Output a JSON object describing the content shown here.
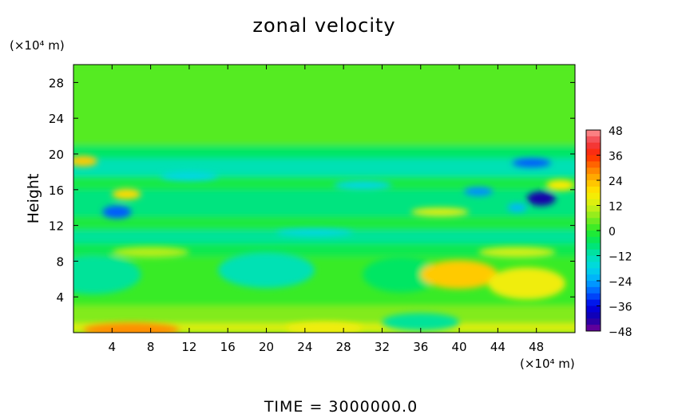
{
  "chart_data": {
    "type": "heatmap",
    "title": "zonal velocity",
    "ylabel": "Height",
    "y_unit_label": "(×10⁴ m)",
    "x_unit_label": "(×10⁴ m)",
    "footer": "TIME  =  3000000.0",
    "xlim": [
      0,
      52
    ],
    "ylim": [
      0,
      30
    ],
    "x_ticks": [
      "4",
      "8",
      "12",
      "16",
      "20",
      "24",
      "28",
      "32",
      "36",
      "40",
      "44",
      "48"
    ],
    "x_tick_values": [
      4,
      8,
      12,
      16,
      20,
      24,
      28,
      32,
      36,
      40,
      44,
      48
    ],
    "y_ticks": [
      "4",
      "8",
      "12",
      "16",
      "20",
      "24",
      "28"
    ],
    "y_tick_values": [
      4,
      8,
      12,
      16,
      20,
      24,
      28
    ],
    "colorbar": {
      "labels": [
        "48",
        "36",
        "24",
        "12",
        "0",
        "−12",
        "−24",
        "−36",
        "−48"
      ],
      "values": [
        48,
        36,
        24,
        12,
        0,
        -12,
        -24,
        -36,
        -48
      ],
      "min": -48,
      "max": 48
    },
    "field": {
      "background_value": 3,
      "bands": [
        {
          "y0": 0,
          "y1": 1,
          "value": 14
        },
        {
          "y0": 1,
          "y1": 3,
          "value": 6
        },
        {
          "y0": 3,
          "y1": 8.5,
          "value": 1
        },
        {
          "y0": 8.5,
          "y1": 10,
          "value": -4
        },
        {
          "y0": 10,
          "y1": 11.5,
          "value": -10
        },
        {
          "y0": 11.5,
          "y1": 13,
          "value": -2
        },
        {
          "y0": 13,
          "y1": 16,
          "value": -8
        },
        {
          "y0": 16,
          "y1": 17.5,
          "value": -3
        },
        {
          "y0": 17.5,
          "y1": 19.5,
          "value": -12
        },
        {
          "y0": 19.5,
          "y1": 21,
          "value": -6
        },
        {
          "y0": 21,
          "y1": 30,
          "value": 3
        }
      ],
      "blobs": [
        {
          "x": 6,
          "y": 0.3,
          "rx": 5,
          "ry": 0.8,
          "value": 28
        },
        {
          "x": 26,
          "y": 0.5,
          "rx": 4,
          "ry": 0.7,
          "value": 16
        },
        {
          "x": 2,
          "y": 6.5,
          "rx": 5,
          "ry": 2.2,
          "value": -10
        },
        {
          "x": 20,
          "y": 7,
          "rx": 5,
          "ry": 2,
          "value": -12
        },
        {
          "x": 34,
          "y": 6.5,
          "rx": 4,
          "ry": 2,
          "value": -6
        },
        {
          "x": 40,
          "y": 6.5,
          "rx": 4,
          "ry": 1.6,
          "value": 22
        },
        {
          "x": 47,
          "y": 5.5,
          "rx": 4,
          "ry": 1.8,
          "value": 16
        },
        {
          "x": 36,
          "y": 1.2,
          "rx": 4,
          "ry": 1,
          "value": -10
        },
        {
          "x": 4.5,
          "y": 13.5,
          "rx": 1.5,
          "ry": 0.7,
          "value": -30
        },
        {
          "x": 5.5,
          "y": 15.5,
          "rx": 1.5,
          "ry": 0.6,
          "value": 20
        },
        {
          "x": 1,
          "y": 19.2,
          "rx": 1.5,
          "ry": 0.6,
          "value": 22
        },
        {
          "x": 48.5,
          "y": 15,
          "rx": 1.5,
          "ry": 0.8,
          "value": -42
        },
        {
          "x": 47.5,
          "y": 19,
          "rx": 2,
          "ry": 0.5,
          "value": -30
        },
        {
          "x": 42,
          "y": 15.8,
          "rx": 1.5,
          "ry": 0.5,
          "value": -26
        },
        {
          "x": 46,
          "y": 14,
          "rx": 1,
          "ry": 0.5,
          "value": -22
        },
        {
          "x": 50.5,
          "y": 16.5,
          "rx": 1.5,
          "ry": 0.6,
          "value": 18
        },
        {
          "x": 30,
          "y": 16.5,
          "rx": 3,
          "ry": 0.5,
          "value": -18
        },
        {
          "x": 12,
          "y": 17.5,
          "rx": 3,
          "ry": 0.5,
          "value": -18
        },
        {
          "x": 38,
          "y": 13.5,
          "rx": 3,
          "ry": 0.5,
          "value": 14
        },
        {
          "x": 25,
          "y": 11.2,
          "rx": 4,
          "ry": 0.4,
          "value": -18
        },
        {
          "x": 46,
          "y": 9,
          "rx": 4,
          "ry": 0.6,
          "value": 12
        },
        {
          "x": 8,
          "y": 9,
          "rx": 4,
          "ry": 0.6,
          "value": 10
        }
      ]
    }
  }
}
